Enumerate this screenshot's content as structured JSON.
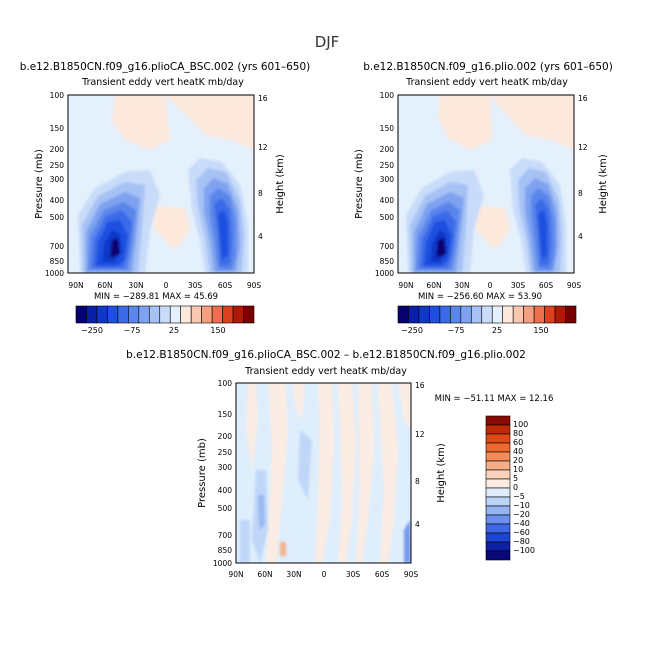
{
  "figure": {
    "title": "DJF"
  },
  "chart_data": [
    {
      "type": "heatmap",
      "case": "b.e12.B1850CN.f09_g16.plioCA_BSC.002 (yrs 601–650)",
      "title": "Transient eddy vert heatK mb/day",
      "ylabel": "Pressure (mb)",
      "y2label": "Height (km)",
      "x_ticks": [
        "90N",
        "60N",
        "30N",
        "0",
        "30S",
        "60S",
        "90S"
      ],
      "y_ticks": [
        "100",
        "150",
        "200",
        "250",
        "300",
        "400",
        "500",
        "700",
        "850",
        "1000"
      ],
      "y2_ticks": [
        "16",
        "12",
        "8",
        "4"
      ],
      "stats": "MIN = −289.81   MAX =  45.69"
    },
    {
      "type": "heatmap",
      "case": "b.e12.B1850CN.f09_g16.plio.002 (yrs 601–650)",
      "title": "Transient eddy vert heatK mb/day",
      "ylabel": "Pressure (mb)",
      "y2label": "Height (km)",
      "x_ticks": [
        "90N",
        "60N",
        "30N",
        "0",
        "30S",
        "60S",
        "90S"
      ],
      "y_ticks": [
        "100",
        "150",
        "200",
        "250",
        "300",
        "400",
        "500",
        "700",
        "850",
        "1000"
      ],
      "y2_ticks": [
        "16",
        "12",
        "8",
        "4"
      ],
      "stats": "MIN = −256.60   MAX =  53.90"
    },
    {
      "type": "heatmap",
      "case": "b.e12.B1850CN.f09_g16.plioCA_BSC.002 – b.e12.B1850CN.f09_g16.plio.002",
      "title": "Transient eddy vert heatK mb/day",
      "ylabel": "Pressure (mb)",
      "y2label": "Height (km)",
      "x_ticks": [
        "90N",
        "60N",
        "30N",
        "0",
        "30S",
        "60S",
        "90S"
      ],
      "y_ticks": [
        "100",
        "150",
        "200",
        "250",
        "300",
        "400",
        "500",
        "700",
        "850",
        "1000"
      ],
      "y2_ticks": [
        "16",
        "12",
        "8",
        "4"
      ],
      "stats": "MIN = −51.11   MAX =  12.16"
    }
  ],
  "colorbar_top": {
    "labels": [
      "−250",
      "−75",
      "25",
      "150"
    ],
    "colors": [
      "#08006e",
      "#0a1fa8",
      "#0f38c8",
      "#1e50e0",
      "#3a6ae8",
      "#5a86ec",
      "#7ea2f0",
      "#a6c2f4",
      "#c8dcfa",
      "#e4f0fc",
      "#fde8dc",
      "#f8c8b0",
      "#f4a080",
      "#ec7050",
      "#dc4020",
      "#b01808",
      "#7a0000"
    ]
  },
  "colorbar_diff": {
    "labels": [
      "100",
      "80",
      "60",
      "40",
      "20",
      "10",
      "5",
      "0",
      "−5",
      "−10",
      "−20",
      "−40",
      "−60",
      "−80",
      "−100"
    ],
    "colors": [
      "#8a0a00",
      "#c02808",
      "#e04818",
      "#f06830",
      "#f48c58",
      "#f6ac84",
      "#fbd2bc",
      "#feece0",
      "#deeefc",
      "#bcd4f8",
      "#94b4f2",
      "#6c90ec",
      "#4068e4",
      "#1e44d4",
      "#0c20a6",
      "#08087a"
    ]
  }
}
